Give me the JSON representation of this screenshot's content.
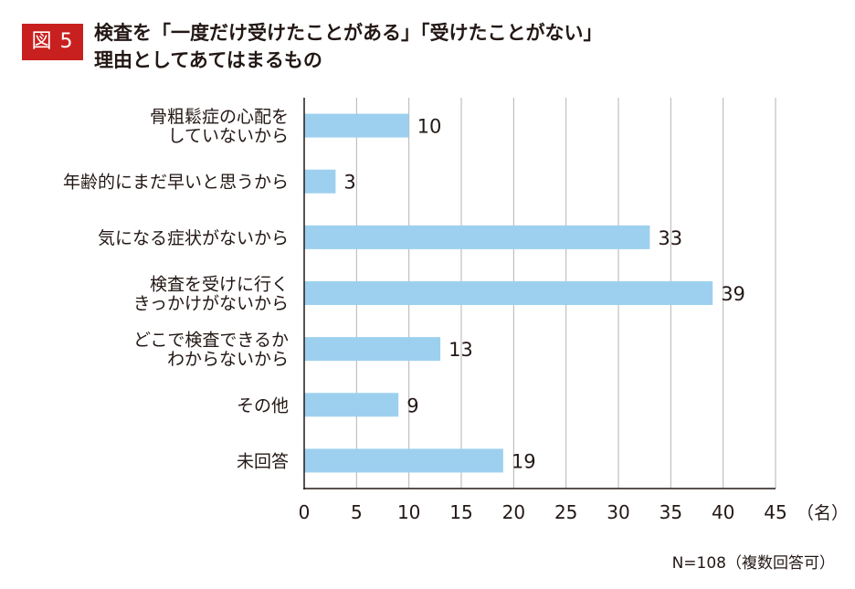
{
  "figure": {
    "badge": "図 5",
    "title_line1": "検査を「一度だけ受けたことがある」「受けたことがない」",
    "title_line2": "理由としてあてはまるもの"
  },
  "chart_data": {
    "type": "bar",
    "orientation": "horizontal",
    "categories": [
      [
        "骨粗鬆症の心配を",
        "していないから"
      ],
      [
        "年齢的にまだ早いと思うから"
      ],
      [
        "気になる症状がないから"
      ],
      [
        "検査を受けに行く",
        "きっかけがないから"
      ],
      [
        "どこで検査できるか",
        "わからないから"
      ],
      [
        "その他"
      ],
      [
        "未回答"
      ]
    ],
    "values": [
      10,
      3,
      33,
      39,
      13,
      9,
      19
    ],
    "xlim": [
      0,
      45
    ],
    "xticks": [
      0,
      5,
      10,
      15,
      20,
      25,
      30,
      35,
      40,
      45
    ],
    "x_unit": "（名）",
    "grid": true,
    "bar_color": "#9dd0ef",
    "note": "N=108（複数回答可）"
  }
}
